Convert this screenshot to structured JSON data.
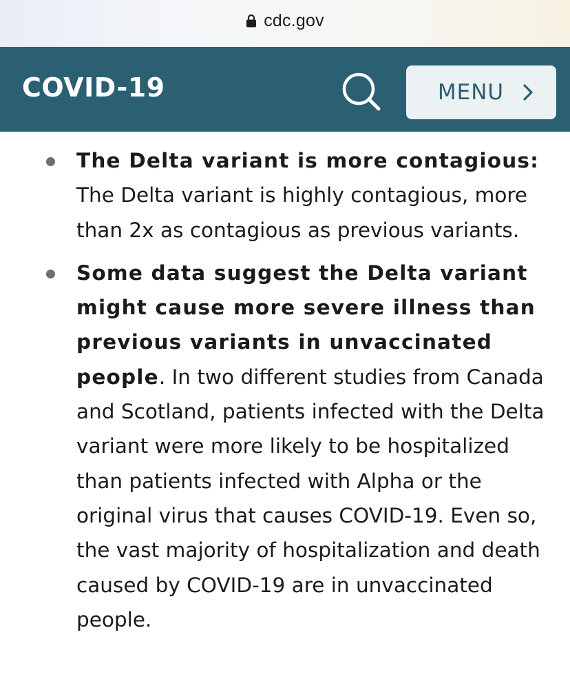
{
  "browser": {
    "url": "cdc.gov"
  },
  "header": {
    "title": "COVID-19",
    "menu_label": "MENU",
    "colors": {
      "header_bg": "#2b5f72",
      "menu_bg": "#ecf1f4"
    }
  },
  "icons": {
    "lock": "lock-icon",
    "search": "search-icon",
    "menu_chevron": "chevron-right-icon"
  },
  "content": {
    "items": [
      {
        "bold": "The Delta variant is more contagious:",
        "text": " The Delta variant is highly contagious, more than 2x as contagious as previous variants."
      },
      {
        "bold": "Some data suggest the Delta variant might cause more severe illness than previous variants in unvaccinated people",
        "text": ". In two different studies from Canada and Scotland, patients infected with the Delta variant were more likely to be hospitalized than patients infected with Alpha or the original virus that causes COVID-19. Even so, the vast majority of hospitalization and death caused by COVID-19 are in unvaccinated people."
      }
    ]
  }
}
